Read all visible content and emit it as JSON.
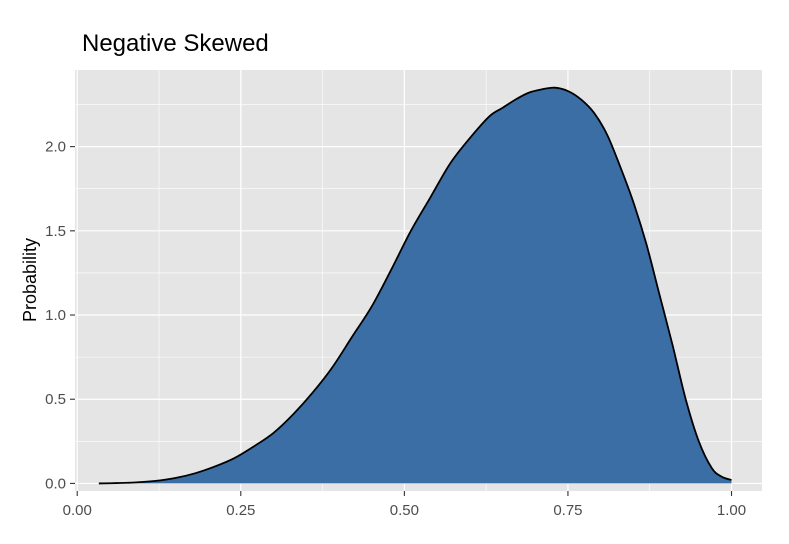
{
  "chart_data": {
    "type": "area",
    "title": "Negative Skewed",
    "xlabel": "",
    "ylabel": "Probability",
    "xlim": [
      -0.0034,
      1.0466
    ],
    "ylim": [
      -0.045,
      2.455
    ],
    "x_ticks": [
      {
        "value": 0.0,
        "label": "0.00"
      },
      {
        "value": 0.25,
        "label": "0.25"
      },
      {
        "value": 0.5,
        "label": "0.50"
      },
      {
        "value": 0.75,
        "label": "0.75"
      },
      {
        "value": 1.0,
        "label": "1.00"
      }
    ],
    "y_ticks": [
      {
        "value": 0.0,
        "label": "0.0"
      },
      {
        "value": 0.5,
        "label": "0.5"
      },
      {
        "value": 1.0,
        "label": "1.0"
      },
      {
        "value": 1.5,
        "label": "1.5"
      },
      {
        "value": 2.0,
        "label": "2.0"
      }
    ],
    "grid": true,
    "series": [
      {
        "x": [
          0.033,
          0.06,
          0.09,
          0.12,
          0.15,
          0.18,
          0.21,
          0.24,
          0.27,
          0.3,
          0.33,
          0.36,
          0.39,
          0.42,
          0.45,
          0.48,
          0.51,
          0.54,
          0.57,
          0.6,
          0.63,
          0.65,
          0.67,
          0.69,
          0.71,
          0.73,
          0.75,
          0.77,
          0.79,
          0.81,
          0.83,
          0.85,
          0.87,
          0.89,
          0.91,
          0.93,
          0.95,
          0.97,
          0.985,
          1.0
        ],
        "y": [
          0.0,
          0.002,
          0.006,
          0.015,
          0.032,
          0.06,
          0.1,
          0.15,
          0.22,
          0.3,
          0.41,
          0.54,
          0.69,
          0.87,
          1.05,
          1.27,
          1.5,
          1.7,
          1.9,
          2.05,
          2.18,
          2.23,
          2.28,
          2.32,
          2.34,
          2.35,
          2.33,
          2.28,
          2.2,
          2.07,
          1.88,
          1.67,
          1.42,
          1.12,
          0.82,
          0.5,
          0.25,
          0.09,
          0.04,
          0.02
        ],
        "fill": "#3a6ea5",
        "stroke": "#000000"
      }
    ]
  },
  "colors": {
    "panel_background": "#e5e5e5",
    "grid": "#ffffff",
    "area_fill": "#3a6ea5",
    "outline": "#000000"
  }
}
